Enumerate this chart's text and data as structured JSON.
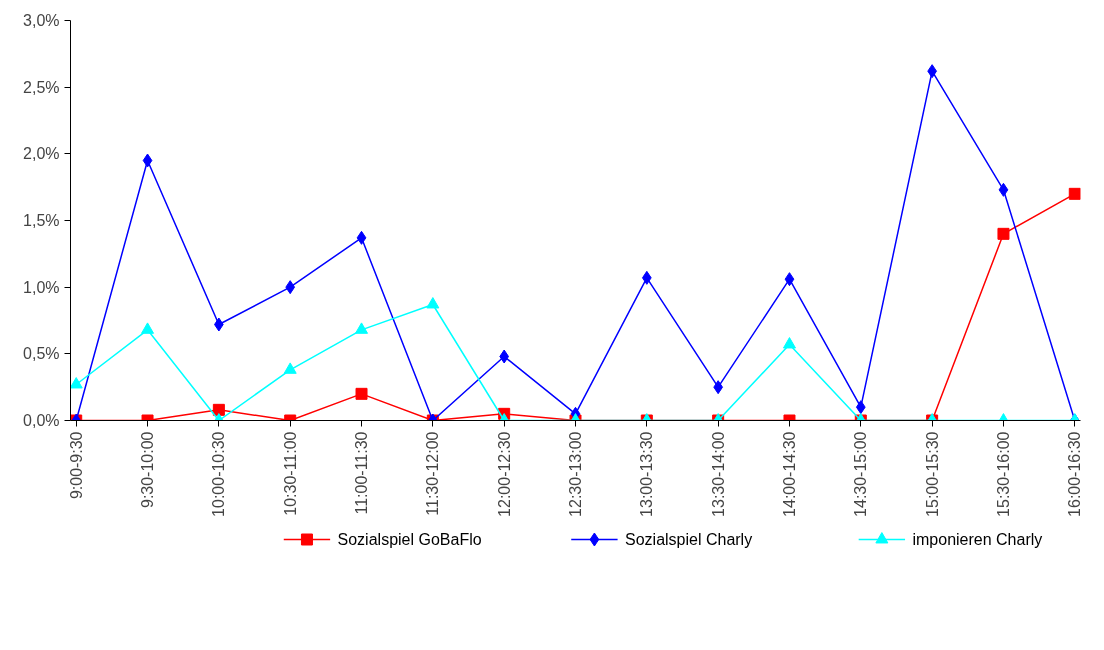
{
  "chart_data": {
    "type": "line",
    "categories": [
      "9:00-9:30",
      "9:30-10:00",
      "10:00-10:30",
      "10:30-11:00",
      "11:00-11:30",
      "11:30-12:00",
      "12:00-12:30",
      "12:30-13:00",
      "13:00-13:30",
      "13:30-14:00",
      "14:00-14:30",
      "14:30-15:00",
      "15:00-15:30",
      "15:30-16:00",
      "16:00-16:30"
    ],
    "series": [
      {
        "name": "Sozialspiel GoBaFlo",
        "color": "#ff0000",
        "marker": "square",
        "values": [
          0,
          0,
          0.08,
          0,
          0.2,
          0,
          0.05,
          0,
          0,
          0,
          0,
          0,
          0,
          1.4,
          1.7
        ]
      },
      {
        "name": "Sozialspiel Charly",
        "color": "#0000ff",
        "marker": "diamond",
        "values": [
          0,
          1.95,
          0.72,
          1.0,
          1.37,
          0,
          0.48,
          0.05,
          1.07,
          0.25,
          1.06,
          0.1,
          2.62,
          1.73,
          0
        ]
      },
      {
        "name": "imponieren Charly",
        "color": "#00ffff",
        "marker": "triangle",
        "values": [
          0.27,
          0.68,
          0,
          0.38,
          0.68,
          0.87,
          0,
          0,
          0,
          0,
          0.57,
          0,
          0,
          0,
          0
        ]
      }
    ],
    "ylim": [
      0,
      3
    ],
    "yticks": [
      {
        "value": 0,
        "label": "0,0%"
      },
      {
        "value": 0.5,
        "label": "0,5%"
      },
      {
        "value": 1,
        "label": "1,0%"
      },
      {
        "value": 1.5,
        "label": "1,5%"
      },
      {
        "value": 2,
        "label": "2,0%"
      },
      {
        "value": 2.5,
        "label": "2,5%"
      },
      {
        "value": 3,
        "label": "3,0%"
      }
    ],
    "grid": false,
    "legend": "bottom",
    "line_style": "solid"
  }
}
